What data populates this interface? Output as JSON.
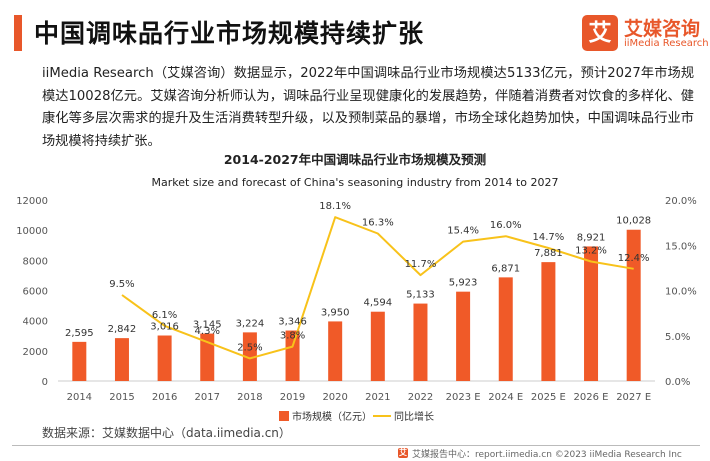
{
  "header": {
    "title": "中国调味品行业市场规模持续扩张",
    "logo_mark": "艾",
    "logo_name": "艾媒咨询",
    "logo_sub": "iiMedia Research"
  },
  "intro": "iiMedia Research（艾媒咨询）数据显示，2022年中国调味品行业市场规模达5133亿元，预计2027年市场规模达10028亿元。艾媒咨询分析师认为，调味品行业呈现健康化的发展趋势，伴随着消费者对饮食的多样化、健康化等多层次需求的提升及生活消费转型升级，以及预制菜品的暴增，市场全球化趋势加快，中国调味品行业市场规模将持续扩张。",
  "chart_data": {
    "type": "bar+line",
    "title": "2014-2027年中国调味品行业市场规模及预测",
    "subtitle": "Market size and forecast of China's seasoning industry from 2014 to 2027",
    "categories": [
      "2014",
      "2015",
      "2016",
      "2017",
      "2018",
      "2019",
      "2020",
      "2021",
      "2022",
      "2023 E",
      "2024 E",
      "2025 E",
      "2026 E",
      "2027 E"
    ],
    "series": [
      {
        "name": "市场规模（亿元）",
        "type": "bar",
        "axis": "left",
        "color": "#f05a28",
        "values": [
          2595,
          2842,
          3016,
          3145,
          3224,
          3346,
          3950,
          4594,
          5133,
          5923,
          6871,
          7881,
          8921,
          10028
        ],
        "labels": [
          "2,595",
          "2,842",
          "3,016",
          "3,145",
          "3,224",
          "3,346",
          "3,950",
          "4,594",
          "5,133",
          "5,923",
          "6,871",
          "7,881",
          "8,921",
          "10,028"
        ]
      },
      {
        "name": "同比增长",
        "type": "line",
        "axis": "right",
        "color": "#f8c21a",
        "values": [
          null,
          9.5,
          6.1,
          4.3,
          2.5,
          3.8,
          18.1,
          16.3,
          11.7,
          15.4,
          16.0,
          14.7,
          13.2,
          12.4
        ],
        "labels": [
          "",
          "9.5%",
          "6.1%",
          "4.3%",
          "2.5%",
          "3.8%",
          "18.1%",
          "16.3%",
          "11.7%",
          "15.4%",
          "16.0%",
          "14.7%",
          "13.2%",
          "12.4%"
        ]
      }
    ],
    "y_left": {
      "min": 0,
      "max": 12000,
      "ticks": [
        "0",
        "2000",
        "4000",
        "6000",
        "8000",
        "10000",
        "12000"
      ]
    },
    "y_right": {
      "min": 0,
      "max": 20,
      "ticks": [
        "0.0%",
        "5.0%",
        "10.0%",
        "15.0%",
        "20.0%"
      ]
    },
    "grid": false,
    "legend_position": "bottom"
  },
  "source_note": "数据来源：艾媒数据中心（data.iimedia.cn）",
  "footer": {
    "logo_mark": "艾",
    "text": "艾媒报告中心：report.iimedia.cn ©2023 iiMedia Research Inc"
  }
}
